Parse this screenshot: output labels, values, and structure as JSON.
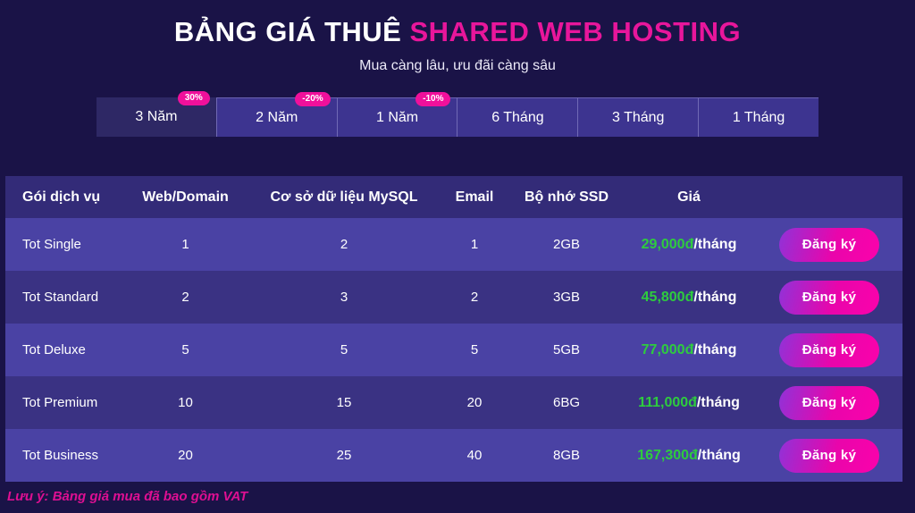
{
  "header": {
    "title_white": "BẢNG GIÁ THUÊ ",
    "title_accent": "SHARED WEB HOSTING",
    "subtitle": "Mua càng lâu, ưu đãi càng sâu"
  },
  "colors": {
    "background": "#1a1347",
    "accent_pink": "#e8169b",
    "badge_pink": "#f0109b",
    "price_green": "#2ecc3e",
    "row_light": "#4a42a4",
    "row_dark": "#3a3283",
    "header_row": "#332b78",
    "button_gradient_start": "#9032d8",
    "button_gradient_end": "#fb02ab"
  },
  "tabs": [
    {
      "label": "3 Năm",
      "badge": "30%",
      "active": true
    },
    {
      "label": "2 Năm",
      "badge": "-20%",
      "active": false
    },
    {
      "label": "1 Năm",
      "badge": "-10%",
      "active": false
    },
    {
      "label": "6 Tháng",
      "badge": "",
      "active": false
    },
    {
      "label": "3 Tháng",
      "badge": "",
      "active": false
    },
    {
      "label": "1 Tháng",
      "badge": "",
      "active": false
    }
  ],
  "table": {
    "headers": {
      "plan": "Gói dịch vụ",
      "web_domain": "Web/Domain",
      "mysql": "Cơ sở dữ liệu MySQL",
      "email": "Email",
      "ssd": "Bộ nhớ SSD",
      "price": "Giá"
    },
    "register_label": "Đăng ký",
    "rows": [
      {
        "plan": "Tot Single",
        "web_domain": "1",
        "mysql": "2",
        "email": "1",
        "ssd": "2GB",
        "price": "29,000đ",
        "per": "/tháng"
      },
      {
        "plan": "Tot Standard",
        "web_domain": "2",
        "mysql": "3",
        "email": "2",
        "ssd": "3GB",
        "price": "45,800đ",
        "per": "/tháng"
      },
      {
        "plan": "Tot Deluxe",
        "web_domain": "5",
        "mysql": "5",
        "email": "5",
        "ssd": "5GB",
        "price": "77,000đ",
        "per": "/tháng"
      },
      {
        "plan": "Tot Premium",
        "web_domain": "10",
        "mysql": "15",
        "email": "20",
        "ssd": "6BG",
        "price": "111,000đ",
        "per": "/tháng"
      },
      {
        "plan": "Tot Business",
        "web_domain": "20",
        "mysql": "25",
        "email": "40",
        "ssd": "8GB",
        "price": "167,300đ",
        "per": "/tháng"
      }
    ]
  },
  "footer": {
    "note": "Lưu ý: Bảng giá mua đã bao gồm VAT"
  }
}
